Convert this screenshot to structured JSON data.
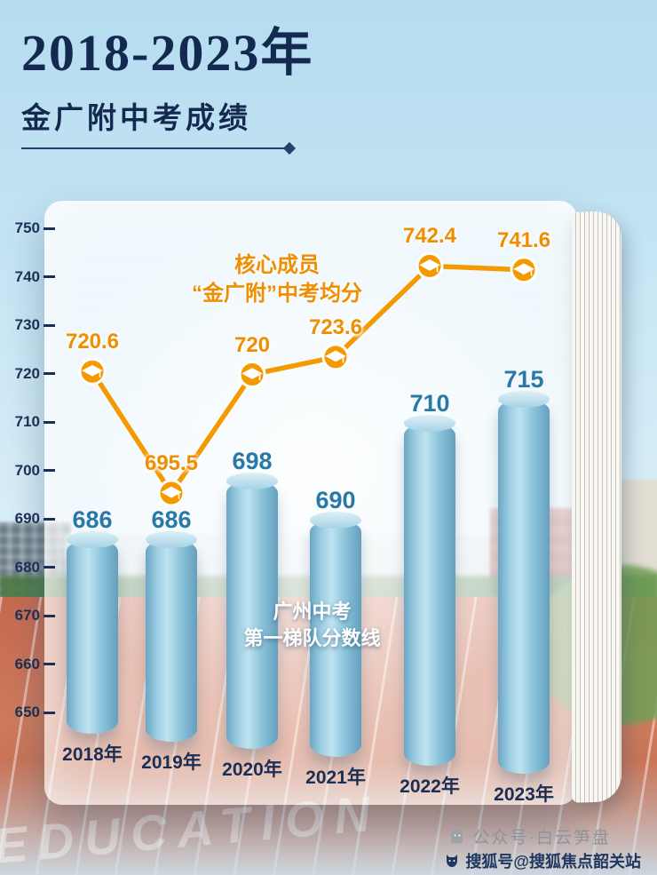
{
  "header": {
    "title": "2018-2023年",
    "subtitle": "金广附中考成绩"
  },
  "chart_data": {
    "type": "bar",
    "title": "2018-2023年 金广附中考成绩",
    "categories": [
      "2018年",
      "2019年",
      "2020年",
      "2021年",
      "2022年",
      "2023年"
    ],
    "series": [
      {
        "name": "广州中考第一梯队分数线",
        "type": "bar",
        "values": [
          686,
          686,
          698,
          690,
          710,
          715
        ]
      },
      {
        "name": "核心成员“金广附”中考均分",
        "type": "line",
        "values": [
          720.6,
          695.5,
          720,
          723.6,
          742.4,
          741.6
        ]
      }
    ],
    "y_ticks": [
      750,
      740,
      730,
      720,
      710,
      700,
      690,
      680,
      670,
      660,
      650
    ],
    "ylim": [
      650,
      750
    ],
    "grid": false,
    "legend_position": "none",
    "annotations": {
      "line_label": [
        "核心成员",
        "“金广附”中考均分"
      ],
      "bar_label": [
        "广州中考",
        "第一梯队分数线"
      ]
    },
    "colors": {
      "bar": "#8cc4dc",
      "line": "#f49a00",
      "bar_value_label": "#2879a5",
      "line_value_label": "#ee8e00",
      "axis_label": "#1c2f55",
      "title": "#14294f"
    },
    "marker_icon": "graduation-cap-icon"
  },
  "footer": {
    "background_watermark": "EDUCATION",
    "wechat_watermark": "公众号·白云笋盘",
    "sohu_watermark": "搜狐号@搜狐焦点韶关站"
  }
}
